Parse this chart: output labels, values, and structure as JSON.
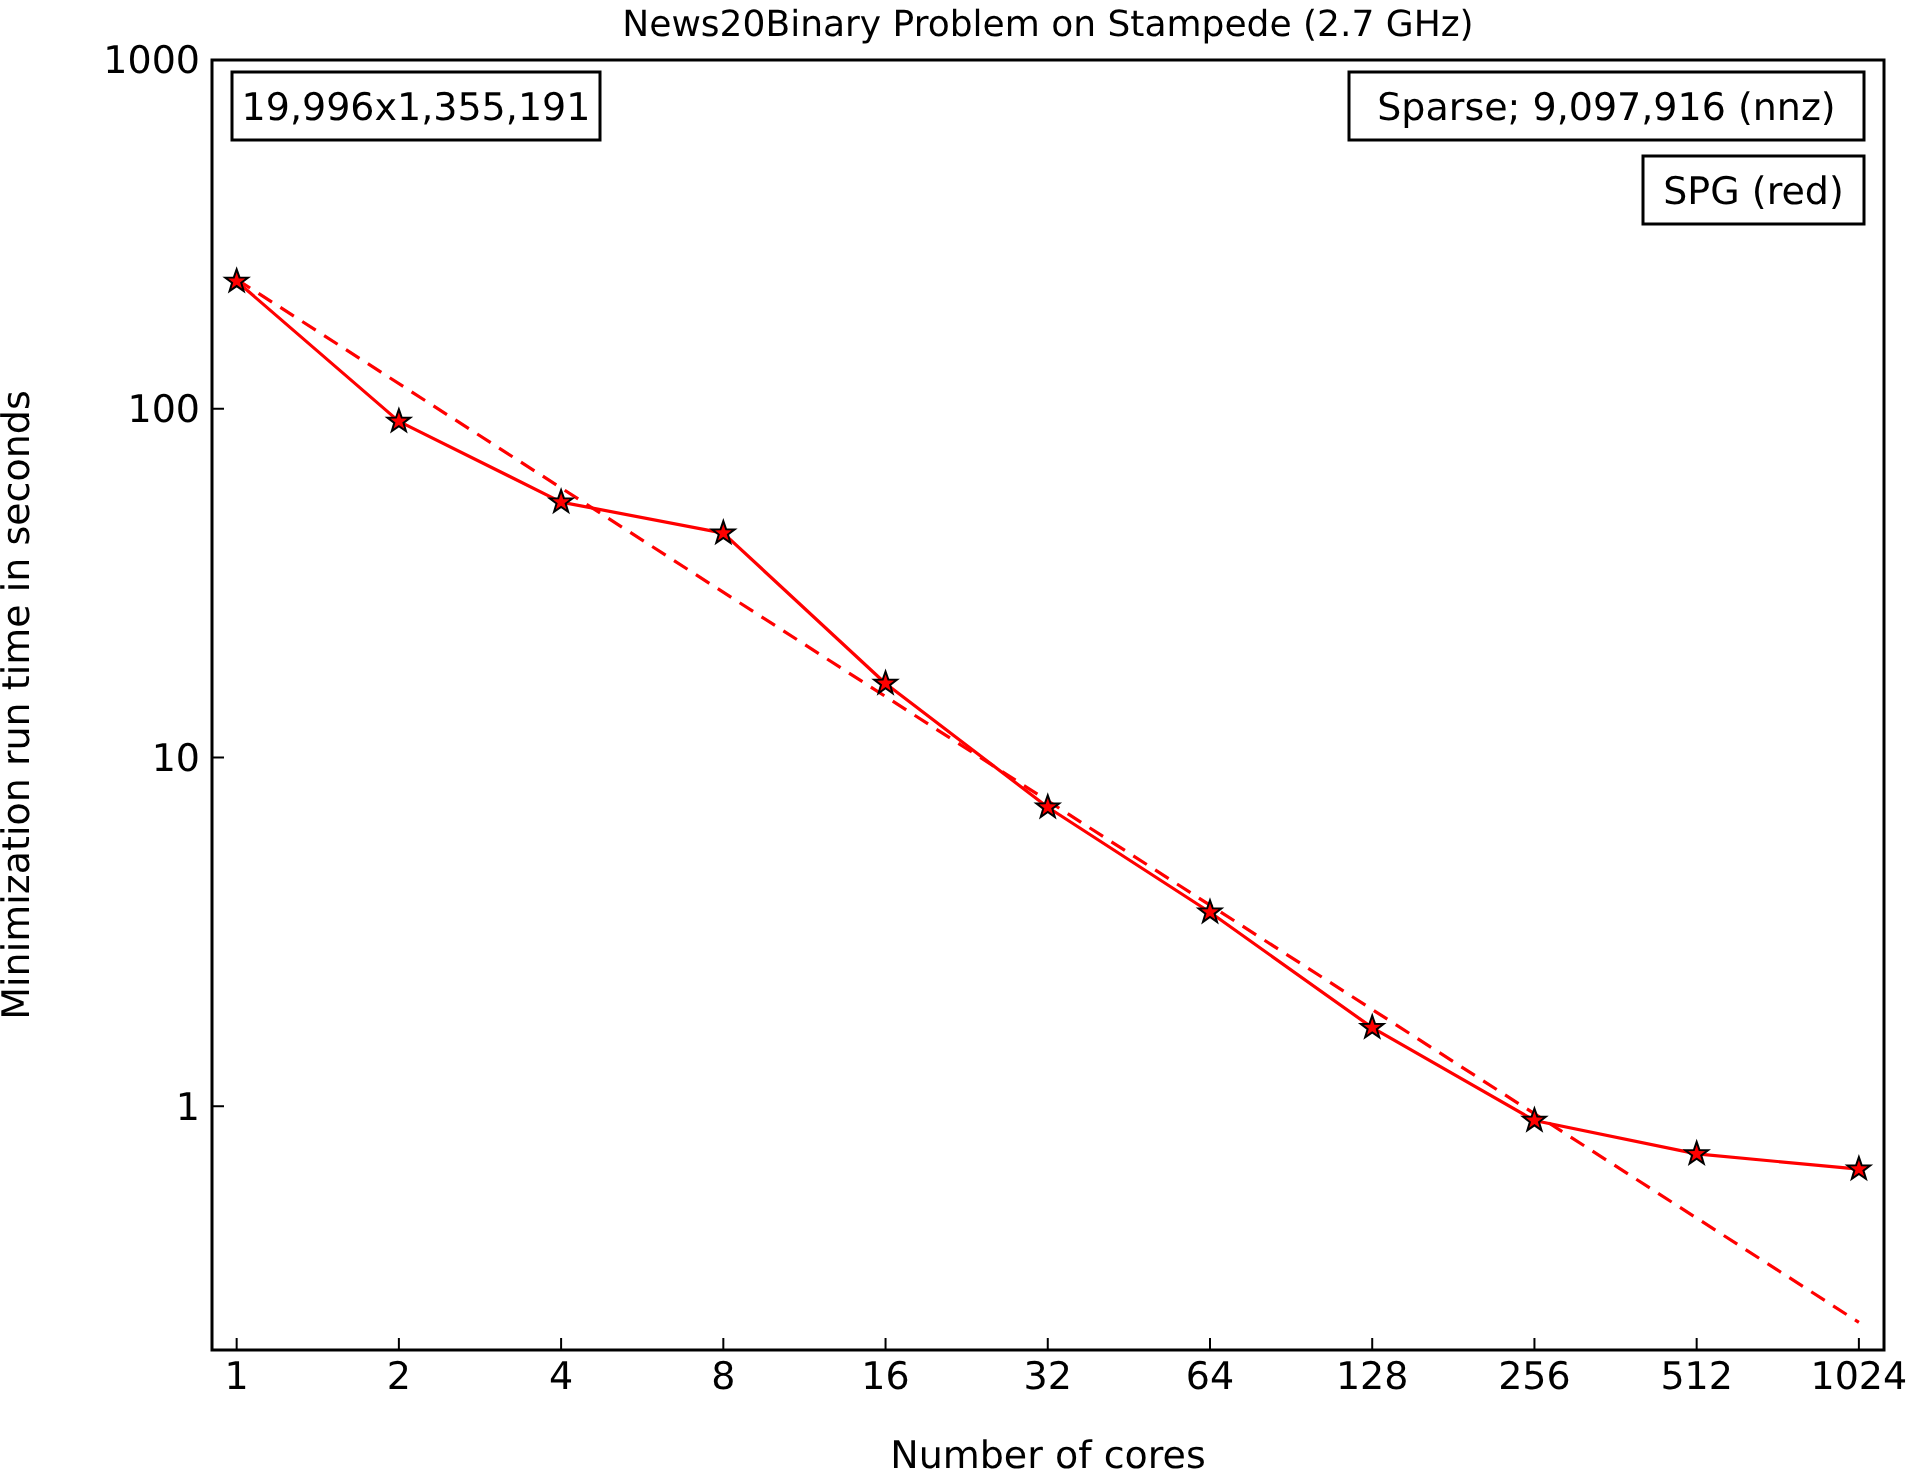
{
  "chart_data": {
    "type": "line",
    "title": "News20Binary Problem on Stampede (2.7 GHz)",
    "xlabel": "Number of cores",
    "ylabel": "Minimization run time in seconds",
    "annotations": [
      "19,996x1,355,191",
      "Sparse; 9,097,916 (nnz)",
      "SPG (red)"
    ],
    "log": "xy",
    "xlim": [
      0.9,
      1140
    ],
    "xticks": [
      1,
      2,
      4,
      8,
      16,
      32,
      64,
      128,
      256,
      512,
      1024
    ],
    "ylim": [
      0.2,
      1000
    ],
    "yticks": [
      1,
      10,
      100,
      1000
    ],
    "series": [
      {
        "color": "#ff0000",
        "marker": "star",
        "line_style": "solid",
        "x": [
          1,
          2,
          4,
          8,
          16,
          32,
          64,
          128,
          256,
          512,
          1024
        ],
        "values": [
          232,
          92,
          54,
          44,
          16.3,
          7.2,
          3.6,
          1.68,
          0.91,
          0.73,
          0.66
        ]
      },
      {
        "type": "line",
        "color": "#ff0000",
        "marker": "none",
        "line_style": "dashed",
        "x": [
          1,
          1024
        ],
        "values": [
          235,
          0.24
        ]
      }
    ]
  }
}
